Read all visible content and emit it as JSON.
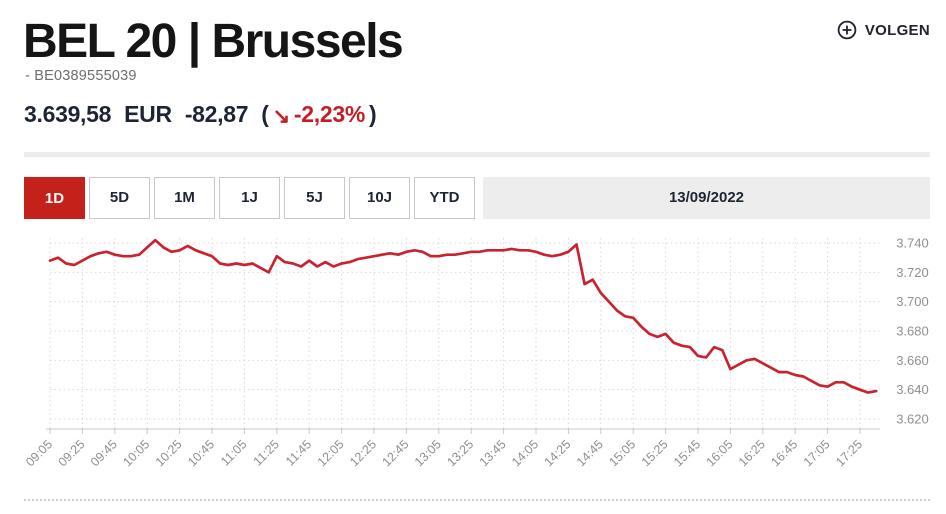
{
  "header": {
    "title": "BEL 20 | Brussels",
    "isin": "- BE0389555039",
    "follow_label": "VOLGEN",
    "price": "3.639,58",
    "currency": "EUR",
    "change_abs": "-82,87",
    "paren_open": "(",
    "down_arrow": "↘",
    "change_pct": "-2,23%",
    "paren_close": ")"
  },
  "toolbar": {
    "ranges": [
      {
        "label": "1D",
        "active": true
      },
      {
        "label": "5D",
        "active": false
      },
      {
        "label": "1M",
        "active": false
      },
      {
        "label": "1J",
        "active": false
      },
      {
        "label": "5J",
        "active": false
      },
      {
        "label": "10J",
        "active": false
      },
      {
        "label": "YTD",
        "active": false
      }
    ],
    "date_label": "13/09/2022"
  },
  "colors": {
    "accent_red": "#c4211a",
    "negative_red": "#c41e25",
    "line_red": "#c9232f",
    "grid_gray": "#d9d9d9",
    "axis_gray": "#c9c9c9",
    "label_gray": "#8f8f8f"
  },
  "chart_data": {
    "type": "line",
    "x_start": "09:05",
    "x_step_minutes": 5,
    "x_ticks": [
      "09:05",
      "09:25",
      "09:45",
      "10:05",
      "10:25",
      "10:45",
      "11:05",
      "11:25",
      "11:45",
      "12:05",
      "12:25",
      "12:45",
      "13:05",
      "13:25",
      "13:45",
      "14:05",
      "14:25",
      "14:45",
      "15:05",
      "15:25",
      "15:45",
      "16:05",
      "16:25",
      "16:45",
      "17:05",
      "17:25"
    ],
    "x_tick_every_points": 4,
    "y_ticks": [
      3740,
      3720,
      3700,
      3680,
      3660,
      3640,
      3620
    ],
    "y_tick_labels": [
      "3.740",
      "3.720",
      "3.700",
      "3.680",
      "3.660",
      "3.640",
      "3.620"
    ],
    "ylim": [
      3614,
      3743
    ],
    "grid": "dotted",
    "legend": "none",
    "series": [
      {
        "name": "BEL 20",
        "values": [
          3728,
          3730,
          3726,
          3725,
          3728,
          3731,
          3733,
          3734,
          3732,
          3731,
          3731,
          3732,
          3737,
          3742,
          3737,
          3734,
          3735,
          3738,
          3735,
          3733,
          3731,
          3726,
          3725,
          3726,
          3725,
          3726,
          3723,
          3720,
          3731,
          3727,
          3726,
          3724,
          3728,
          3724,
          3727,
          3724,
          3726,
          3727,
          3729,
          3730,
          3731,
          3732,
          3733,
          3732,
          3734,
          3735,
          3734,
          3731,
          3731,
          3732,
          3732,
          3733,
          3734,
          3734,
          3735,
          3735,
          3735,
          3736,
          3735,
          3735,
          3734,
          3732,
          3731,
          3732,
          3734,
          3739,
          3712,
          3715,
          3706,
          3700,
          3694,
          3690,
          3689,
          3683,
          3678,
          3676,
          3678,
          3672,
          3670,
          3669,
          3663,
          3662,
          3669,
          3667,
          3654,
          3657,
          3660,
          3661,
          3658,
          3655,
          3652,
          3652,
          3650,
          3649,
          3646,
          3643,
          3642,
          3645,
          3645,
          3642,
          3640,
          3638,
          3639
        ]
      }
    ]
  }
}
